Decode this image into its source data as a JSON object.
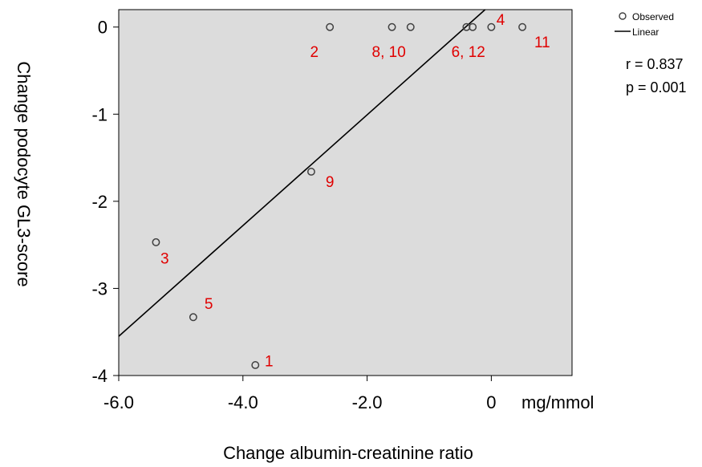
{
  "chart_data": {
    "type": "scatter",
    "xlabel": "Change albumin-creatinine ratio",
    "ylabel": "Change podocyte GL3-score",
    "x_unit": "mg/mmol",
    "xlim": [
      -6.0,
      1.3
    ],
    "ylim": [
      -4.0,
      0.2
    ],
    "x_ticks": [
      {
        "value": -6.0,
        "label": "-6.0"
      },
      {
        "value": -4.0,
        "label": "-4.0"
      },
      {
        "value": -2.0,
        "label": "-2.0"
      },
      {
        "value": 0,
        "label": "0"
      }
    ],
    "y_ticks": [
      {
        "value": 0,
        "label": "0"
      },
      {
        "value": -1,
        "label": "-1"
      },
      {
        "value": -2,
        "label": "-2"
      },
      {
        "value": -3,
        "label": "-3"
      },
      {
        "value": -4,
        "label": "-4"
      }
    ],
    "points": [
      {
        "x": -3.8,
        "y": -3.88,
        "label": "1"
      },
      {
        "x": -2.6,
        "y": 0.0,
        "label": "2"
      },
      {
        "x": -5.4,
        "y": -2.47,
        "label": "3"
      },
      {
        "x": 0.0,
        "y": 0.0,
        "label": "4"
      },
      {
        "x": -4.8,
        "y": -3.33,
        "label": "5"
      },
      {
        "x": -0.4,
        "y": 0.0,
        "label": "6"
      },
      {
        "x": -1.6,
        "y": 0.0,
        "label": "8"
      },
      {
        "x": -2.9,
        "y": -1.66,
        "label": "9"
      },
      {
        "x": -1.3,
        "y": 0.0,
        "label": "10"
      },
      {
        "x": 0.5,
        "y": 0.0,
        "label": "11"
      },
      {
        "x": -0.3,
        "y": 0.0,
        "label": "12"
      }
    ],
    "point_annotations": [
      {
        "text": "1",
        "x": -3.58,
        "y": -3.83
      },
      {
        "text": "2",
        "x": -2.85,
        "y": -0.28
      },
      {
        "text": "3",
        "x": -5.26,
        "y": -2.65
      },
      {
        "text": "4",
        "x": 0.15,
        "y": 0.09
      },
      {
        "text": "5",
        "x": -4.55,
        "y": -3.17
      },
      {
        "text": "6, 12",
        "x": -0.37,
        "y": -0.28
      },
      {
        "text": "8, 10",
        "x": -1.65,
        "y": -0.28
      },
      {
        "text": "9",
        "x": -2.6,
        "y": -1.77
      },
      {
        "text": "11",
        "x": 0.82,
        "y": -0.17
      }
    ],
    "fit_line": {
      "name": "Linear",
      "x": [
        -6.0,
        -0.1
      ],
      "y": [
        -3.55,
        0.2
      ]
    },
    "legend": {
      "position": "top-right",
      "items": [
        {
          "label": "Observed",
          "marker": "circle"
        },
        {
          "label": "Linear",
          "marker": "line"
        }
      ]
    },
    "stats": [
      "r = 0.837",
      "p = 0.001"
    ],
    "grid": false,
    "colors": {
      "plot_bg": "#dcdcdc",
      "marker": "#404040",
      "line": "#000000",
      "annotation": "#e00000"
    }
  }
}
